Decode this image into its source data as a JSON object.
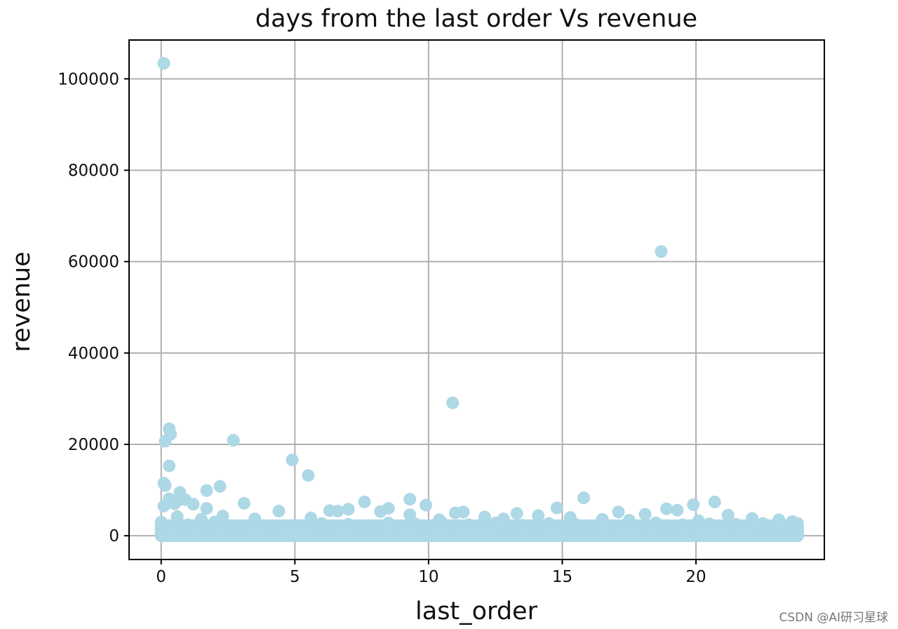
{
  "chart_data": {
    "type": "scatter",
    "title": "days from the last order Vs revenue",
    "xlabel": "last_order",
    "ylabel": "revenue",
    "xlim": [
      -1.2,
      24.8
    ],
    "ylim": [
      -5200,
      108500
    ],
    "grid": true,
    "color": "#add8e6",
    "x_ticks": [
      0,
      5,
      10,
      15,
      20
    ],
    "x_tick_labels": [
      "0",
      "5",
      "10",
      "15",
      "20"
    ],
    "y_ticks": [
      0,
      20000,
      40000,
      60000,
      80000,
      100000
    ],
    "y_tick_labels": [
      "0",
      "20000",
      "40000",
      "60000",
      "80000",
      "100000"
    ],
    "points": [
      [
        0.1,
        103400
      ],
      [
        18.7,
        62200
      ],
      [
        10.9,
        29100
      ],
      [
        0.3,
        23400
      ],
      [
        0.35,
        22200
      ],
      [
        0.15,
        20700
      ],
      [
        2.7,
        20900
      ],
      [
        4.9,
        16600
      ],
      [
        0.3,
        15300
      ],
      [
        5.5,
        13200
      ],
      [
        0.1,
        11500
      ],
      [
        0.15,
        11000
      ],
      [
        2.2,
        10800
      ],
      [
        1.7,
        9900
      ],
      [
        0.7,
        9500
      ],
      [
        15.8,
        8300
      ],
      [
        0.3,
        8100
      ],
      [
        0.9,
        7900
      ],
      [
        9.3,
        8000
      ],
      [
        0.6,
        7600
      ],
      [
        20.7,
        7400
      ],
      [
        7.6,
        7400
      ],
      [
        3.1,
        7100
      ],
      [
        0.5,
        7000
      ],
      [
        1.2,
        6900
      ],
      [
        9.9,
        6700
      ],
      [
        19.9,
        6800
      ],
      [
        0.1,
        6500
      ],
      [
        1.7,
        6000
      ],
      [
        14.8,
        6100
      ],
      [
        8.5,
        6000
      ],
      [
        18.9,
        5900
      ],
      [
        7.0,
        5800
      ],
      [
        19.3,
        5600
      ],
      [
        6.3,
        5500
      ],
      [
        6.6,
        5400
      ],
      [
        8.2,
        5300
      ],
      [
        4.4,
        5400
      ],
      [
        11.3,
        5200
      ],
      [
        17.1,
        5200
      ],
      [
        11.0,
        5000
      ],
      [
        13.3,
        4900
      ],
      [
        18.1,
        4700
      ],
      [
        9.3,
        4600
      ],
      [
        21.2,
        4500
      ],
      [
        14.1,
        4400
      ],
      [
        2.3,
        4300
      ],
      [
        12.1,
        4100
      ],
      [
        15.3,
        4000
      ],
      [
        22.1,
        3800
      ],
      [
        16.5,
        3600
      ],
      [
        23.1,
        3500
      ],
      [
        5.6,
        3900
      ],
      [
        3.5,
        3700
      ],
      [
        12.8,
        3700
      ],
      [
        17.5,
        3400
      ],
      [
        10.4,
        3500
      ],
      [
        20.1,
        3300
      ],
      [
        23.6,
        3100
      ],
      [
        1.5,
        3600
      ],
      [
        0.0,
        3000
      ],
      [
        0.2,
        2000
      ],
      [
        0.4,
        1000
      ],
      [
        0.0,
        500
      ],
      [
        0.6,
        4200
      ],
      [
        1.0,
        2400
      ],
      [
        1.5,
        1500
      ],
      [
        2.0,
        3000
      ],
      [
        2.5,
        2200
      ],
      [
        3.0,
        1200
      ],
      [
        3.5,
        2600
      ],
      [
        4.0,
        1800
      ],
      [
        4.5,
        900
      ],
      [
        5.0,
        2300
      ],
      [
        5.5,
        1400
      ],
      [
        6.0,
        2700
      ],
      [
        6.5,
        1600
      ],
      [
        7.0,
        2500
      ],
      [
        7.5,
        1100
      ],
      [
        8.0,
        2000
      ],
      [
        8.5,
        2800
      ],
      [
        9.0,
        1300
      ],
      [
        9.5,
        2600
      ],
      [
        10.0,
        1700
      ],
      [
        10.5,
        2900
      ],
      [
        11.0,
        1000
      ],
      [
        11.5,
        2400
      ],
      [
        12.0,
        1900
      ],
      [
        12.5,
        2800
      ],
      [
        13.0,
        1200
      ],
      [
        13.5,
        2300
      ],
      [
        14.0,
        1600
      ],
      [
        14.5,
        2700
      ],
      [
        15.0,
        1000
      ],
      [
        15.5,
        2500
      ],
      [
        16.0,
        1800
      ],
      [
        16.5,
        2900
      ],
      [
        17.0,
        1400
      ],
      [
        17.5,
        2200
      ],
      [
        18.0,
        1700
      ],
      [
        18.5,
        2800
      ],
      [
        19.0,
        1100
      ],
      [
        19.5,
        2400
      ],
      [
        20.0,
        1900
      ],
      [
        20.5,
        2600
      ],
      [
        21.0,
        1300
      ],
      [
        21.5,
        2500
      ],
      [
        22.0,
        1600
      ],
      [
        22.5,
        2700
      ],
      [
        23.0,
        1200
      ],
      [
        23.5,
        2300
      ],
      [
        23.8,
        1500
      ],
      [
        23.8,
        2700
      ],
      [
        23.8,
        600
      ],
      [
        0.0,
        0
      ],
      [
        2.0,
        0
      ],
      [
        4.0,
        0
      ],
      [
        6.0,
        0
      ],
      [
        8.0,
        0
      ],
      [
        10.0,
        0
      ],
      [
        12.0,
        0
      ],
      [
        14.0,
        0
      ],
      [
        16.0,
        0
      ],
      [
        18.0,
        0
      ],
      [
        20.0,
        0
      ],
      [
        22.0,
        0
      ],
      [
        23.8,
        0
      ],
      [
        1.0,
        300
      ],
      [
        3.0,
        300
      ],
      [
        5.0,
        300
      ],
      [
        7.0,
        300
      ],
      [
        9.0,
        300
      ],
      [
        11.0,
        300
      ],
      [
        13.0,
        300
      ],
      [
        15.0,
        300
      ],
      [
        17.0,
        300
      ],
      [
        19.0,
        300
      ],
      [
        21.0,
        300
      ],
      [
        23.0,
        300
      ]
    ],
    "dense_band": {
      "x_range": [
        0,
        23.8
      ],
      "y_range": [
        0,
        2200
      ]
    }
  },
  "watermark": "CSDN @AI研习星球"
}
